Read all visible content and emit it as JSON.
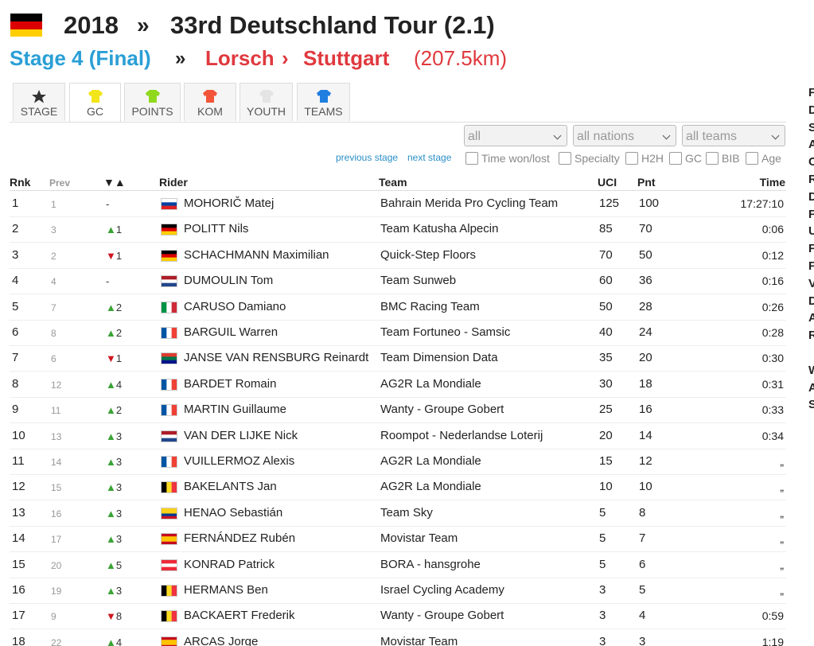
{
  "header": {
    "year": "2018",
    "sep": "»",
    "race": "33rd Deutschland Tour (2.1)"
  },
  "subheader": {
    "stage": "Stage 4 (Final)",
    "sep": "»",
    "from": "Lorsch",
    "arrow": "›",
    "to": "Stuttgart",
    "distance": "(207.5km)"
  },
  "tabs": [
    "STAGE",
    "GC",
    "POINTS",
    "KOM",
    "YOUTH",
    "TEAMS"
  ],
  "filters": {
    "selects": [
      "all",
      "all nations",
      "all teams"
    ],
    "links": [
      "previous stage",
      "next stage"
    ],
    "checkboxes": [
      "Time won/lost",
      "Specialty",
      "H2H",
      "GC",
      "BIB",
      "Age"
    ]
  },
  "table": {
    "headers": [
      "Rnk",
      "Prev",
      "▼▲",
      "Rider",
      "Team",
      "UCI",
      "Pnt",
      "Time"
    ],
    "rows": [
      {
        "rnk": 1,
        "prev": 1,
        "change": "-",
        "flag": {
          "dir": "h",
          "colors": [
            "#ffffff",
            "#0040a0",
            "#e02020"
          ]
        },
        "rider": "MOHORIČ Matej",
        "team": "Bahrain Merida Pro Cycling Team",
        "uci": 125,
        "pnt": 100,
        "time": "17:27:10"
      },
      {
        "rnk": 2,
        "prev": 3,
        "change": "▲1",
        "flag": {
          "dir": "h",
          "colors": [
            "#000000",
            "#dd0000",
            "#ffce00"
          ]
        },
        "rider": "POLITT Nils",
        "team": "Team Katusha Alpecin",
        "uci": 85,
        "pnt": 70,
        "time": "0:06"
      },
      {
        "rnk": 3,
        "prev": 2,
        "change": "▼1",
        "flag": {
          "dir": "h",
          "colors": [
            "#000000",
            "#dd0000",
            "#ffce00"
          ]
        },
        "rider": "SCHACHMANN Maximilian",
        "team": "Quick-Step Floors",
        "uci": 70,
        "pnt": 50,
        "time": "0:12"
      },
      {
        "rnk": 4,
        "prev": 4,
        "change": "-",
        "flag": {
          "dir": "h",
          "colors": [
            "#ae1c28",
            "#ffffff",
            "#21468b"
          ]
        },
        "rider": "DUMOULIN Tom",
        "team": "Team Sunweb",
        "uci": 60,
        "pnt": 36,
        "time": "0:16"
      },
      {
        "rnk": 5,
        "prev": 7,
        "change": "▲2",
        "flag": {
          "dir": "v",
          "colors": [
            "#009246",
            "#ffffff",
            "#ce2b37"
          ]
        },
        "rider": "CARUSO Damiano",
        "team": "BMC Racing Team",
        "uci": 50,
        "pnt": 28,
        "time": "0:26"
      },
      {
        "rnk": 6,
        "prev": 8,
        "change": "▲2",
        "flag": {
          "dir": "v",
          "colors": [
            "#0055a4",
            "#ffffff",
            "#ef4135"
          ]
        },
        "rider": "BARGUIL Warren",
        "team": "Team Fortuneo - Samsic",
        "uci": 40,
        "pnt": 24,
        "time": "0:28"
      },
      {
        "rnk": 7,
        "prev": 6,
        "change": "▼1",
        "flag": {
          "dir": "h",
          "colors": [
            "#e03c31",
            "#007749",
            "#001489"
          ]
        },
        "rider": "JANSE VAN RENSBURG Reinardt",
        "team": "Team Dimension Data",
        "uci": 35,
        "pnt": 20,
        "time": "0:30"
      },
      {
        "rnk": 8,
        "prev": 12,
        "change": "▲4",
        "flag": {
          "dir": "v",
          "colors": [
            "#0055a4",
            "#ffffff",
            "#ef4135"
          ]
        },
        "rider": "BARDET Romain",
        "team": "AG2R La Mondiale",
        "uci": 30,
        "pnt": 18,
        "time": "0:31"
      },
      {
        "rnk": 9,
        "prev": 11,
        "change": "▲2",
        "flag": {
          "dir": "v",
          "colors": [
            "#0055a4",
            "#ffffff",
            "#ef4135"
          ]
        },
        "rider": "MARTIN Guillaume",
        "team": "Wanty - Groupe Gobert",
        "uci": 25,
        "pnt": 16,
        "time": "0:33"
      },
      {
        "rnk": 10,
        "prev": 13,
        "change": "▲3",
        "flag": {
          "dir": "h",
          "colors": [
            "#ae1c28",
            "#ffffff",
            "#21468b"
          ]
        },
        "rider": "VAN DER LIJKE Nick",
        "team": "Roompot - Nederlandse Loterij",
        "uci": 20,
        "pnt": 14,
        "time": "0:34"
      },
      {
        "rnk": 11,
        "prev": 14,
        "change": "▲3",
        "flag": {
          "dir": "v",
          "colors": [
            "#0055a4",
            "#ffffff",
            "#ef4135"
          ]
        },
        "rider": "VUILLERMOZ Alexis",
        "team": "AG2R La Mondiale",
        "uci": 15,
        "pnt": 12,
        "time": "„"
      },
      {
        "rnk": 12,
        "prev": 15,
        "change": "▲3",
        "flag": {
          "dir": "v",
          "colors": [
            "#000000",
            "#fdda24",
            "#ef3340"
          ]
        },
        "rider": "BAKELANTS Jan",
        "team": "AG2R La Mondiale",
        "uci": 10,
        "pnt": 10,
        "time": "„"
      },
      {
        "rnk": 13,
        "prev": 16,
        "change": "▲3",
        "flag": {
          "dir": "h",
          "colors": [
            "#fcd116",
            "#fcd116",
            "#003893",
            "#ce1126"
          ]
        },
        "rider": "HENAO Sebastián",
        "team": "Team Sky",
        "uci": 5,
        "pnt": 8,
        "time": "„"
      },
      {
        "rnk": 14,
        "prev": 17,
        "change": "▲3",
        "flag": {
          "dir": "h",
          "colors": [
            "#c60b1e",
            "#ffc400",
            "#ffc400",
            "#c60b1e"
          ]
        },
        "rider": "FERNÁNDEZ Rubén",
        "team": "Movistar Team",
        "uci": 5,
        "pnt": 7,
        "time": "„"
      },
      {
        "rnk": 15,
        "prev": 20,
        "change": "▲5",
        "flag": {
          "dir": "h",
          "colors": [
            "#ed2939",
            "#ffffff",
            "#ed2939"
          ]
        },
        "rider": "KONRAD Patrick",
        "team": "BORA - hansgrohe",
        "uci": 5,
        "pnt": 6,
        "time": "„"
      },
      {
        "rnk": 16,
        "prev": 19,
        "change": "▲3",
        "flag": {
          "dir": "v",
          "colors": [
            "#000000",
            "#fdda24",
            "#ef3340"
          ]
        },
        "rider": "HERMANS Ben",
        "team": "Israel Cycling Academy",
        "uci": 3,
        "pnt": 5,
        "time": "„"
      },
      {
        "rnk": 17,
        "prev": 9,
        "change": "▼8",
        "flag": {
          "dir": "v",
          "colors": [
            "#000000",
            "#fdda24",
            "#ef3340"
          ]
        },
        "rider": "BACKAERT Frederik",
        "team": "Wanty - Groupe Gobert",
        "uci": 3,
        "pnt": 4,
        "time": "0:59"
      },
      {
        "rnk": 18,
        "prev": 22,
        "change": "▲4",
        "flag": {
          "dir": "h",
          "colors": [
            "#c60b1e",
            "#ffc400",
            "#ffc400",
            "#c60b1e"
          ]
        },
        "rider": "ARCAS Jorge",
        "team": "Movistar Team",
        "uci": 3,
        "pnt": 3,
        "time": "1:19"
      }
    ]
  },
  "sidebar": [
    "F",
    "D",
    "S",
    "A",
    "C",
    "R",
    "D",
    "F",
    "U",
    "F",
    "F",
    "V",
    "D",
    "A",
    "R",
    "S",
    "W",
    "A"
  ]
}
